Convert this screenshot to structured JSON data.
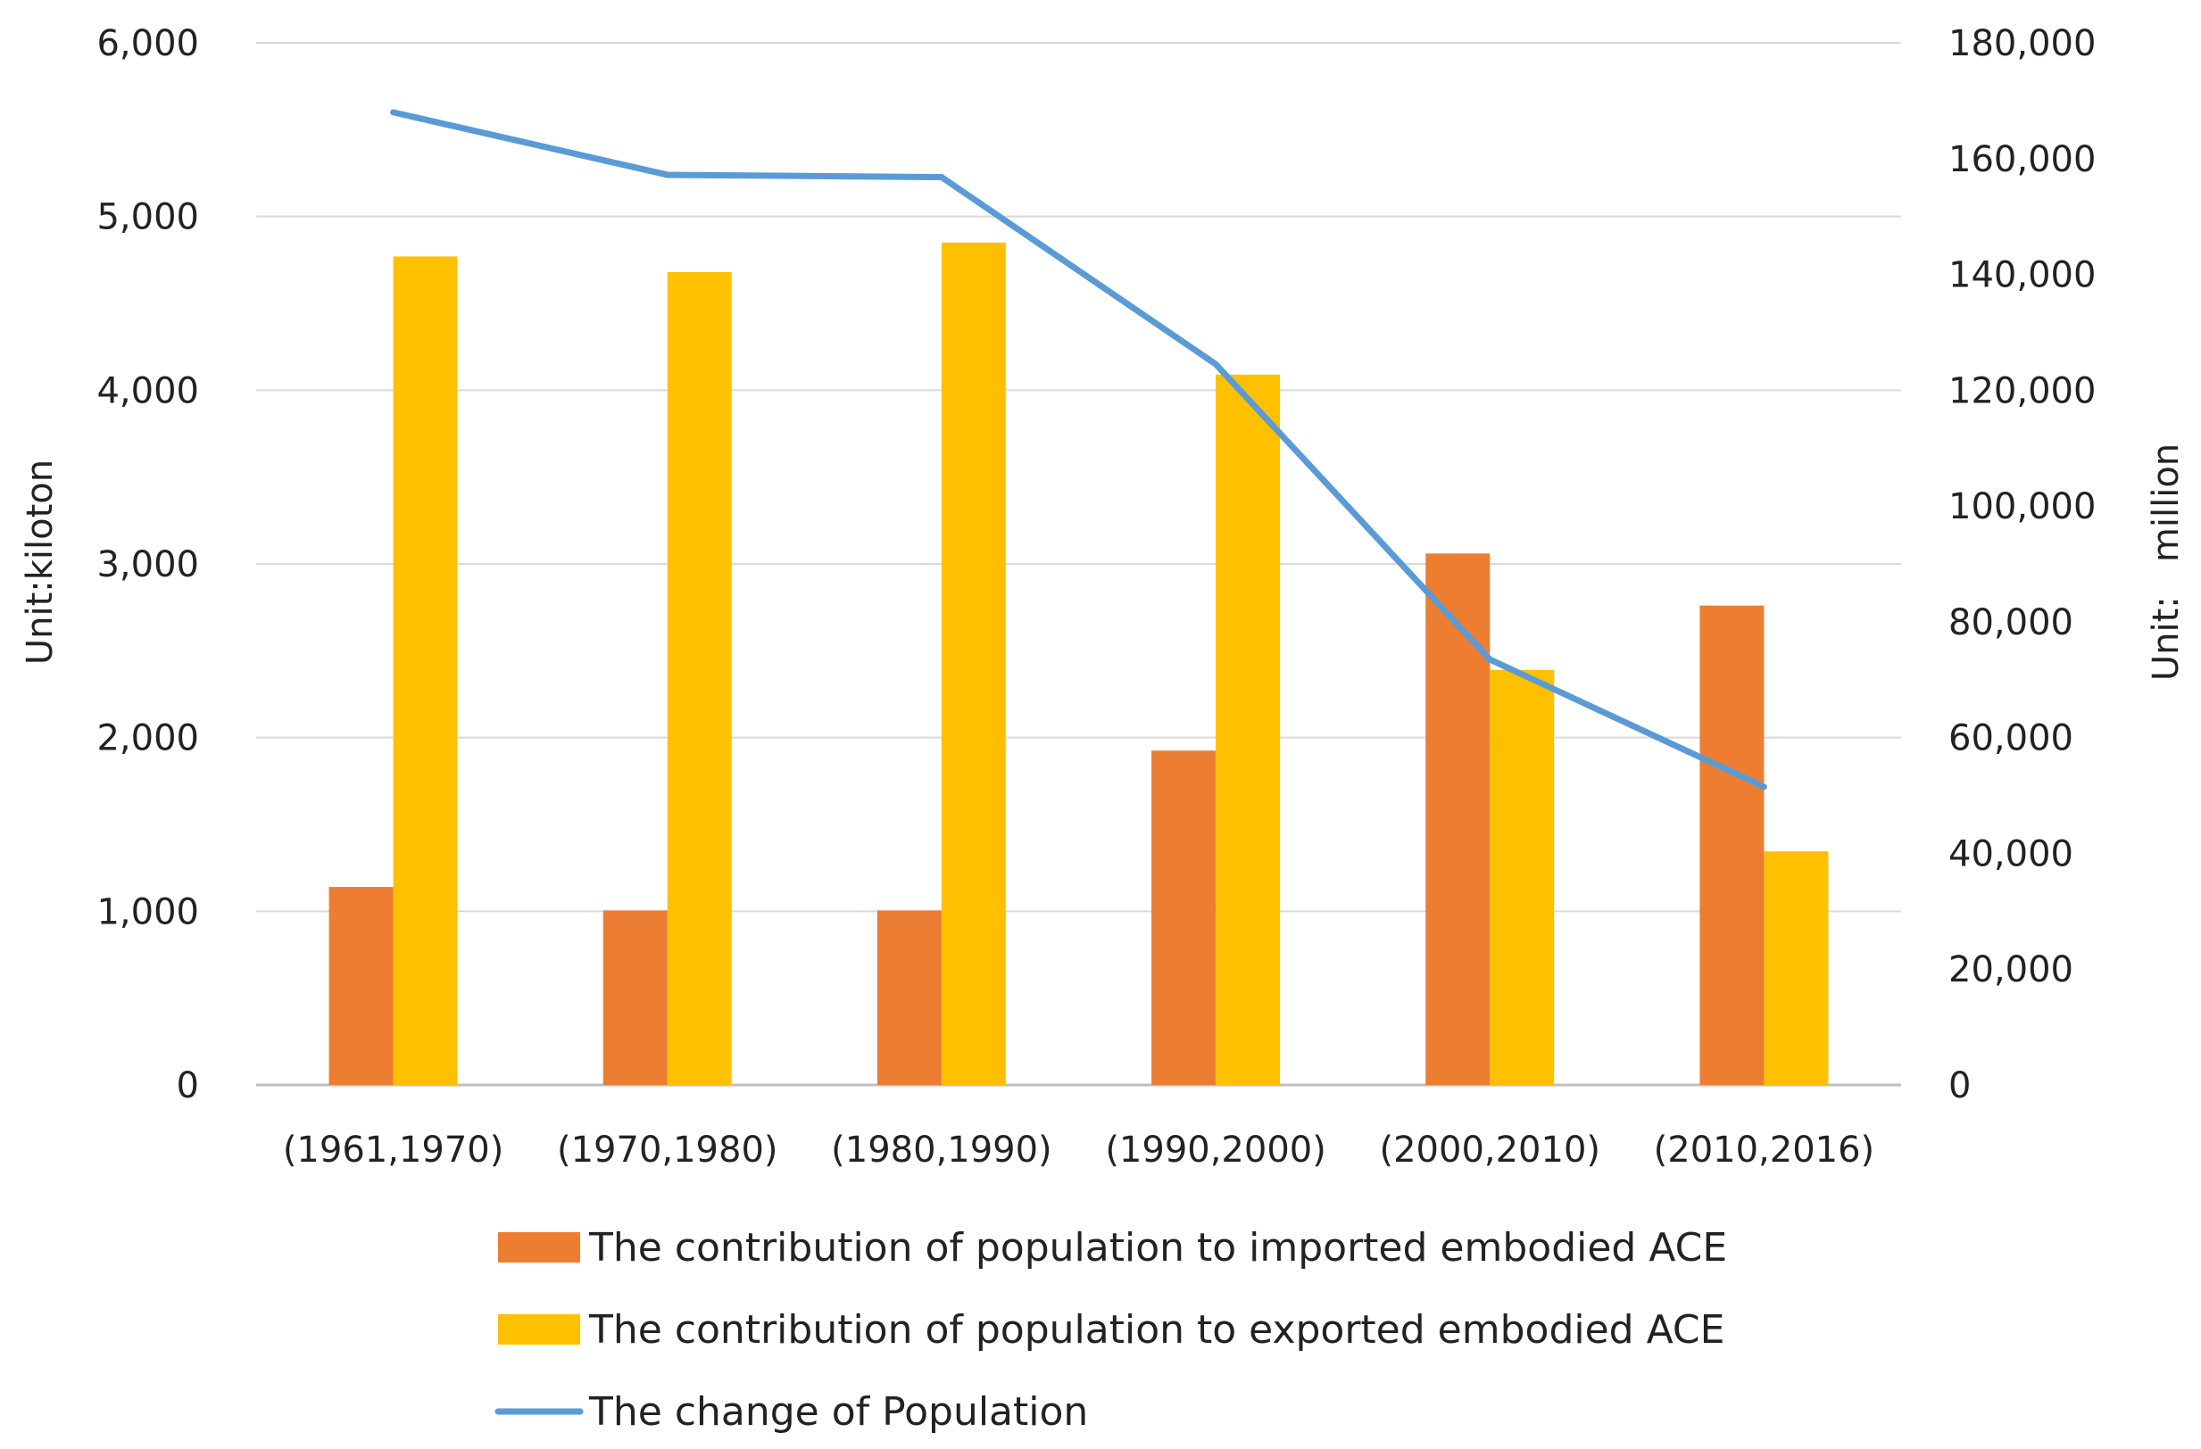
{
  "chart_data": {
    "type": "bar",
    "title": "",
    "categories": [
      "(1961,1970)",
      "(1970,1980)",
      "(1980,1990)",
      "(1990,2000)",
      "(2000,2010)",
      "(2010,2016)"
    ],
    "series": [
      {
        "name": "The contribution of population to imported embodied ACE",
        "type": "bar",
        "axis": "left",
        "color": "#ED7D31",
        "values": [
          1140,
          1005,
          1005,
          1925,
          3060,
          2760
        ]
      },
      {
        "name": "The contribution of population to exported embodied ACE",
        "type": "bar",
        "axis": "left",
        "color": "#FFC000",
        "values": [
          4770,
          4680,
          4850,
          4090,
          2390,
          1345
        ]
      },
      {
        "name": "The change of Population",
        "type": "line",
        "axis": "right",
        "color": "#5B9BD5",
        "values": [
          168000,
          157200,
          156800,
          124500,
          73500,
          51500
        ]
      }
    ],
    "ylabel": "Unit:kiloton",
    "ylim": [
      0,
      6000
    ],
    "yticks": [
      0,
      1000,
      2000,
      3000,
      4000,
      5000,
      6000
    ],
    "ytick_labels": [
      "0",
      "1,000",
      "2,000",
      "3,000",
      "4,000",
      "5,000",
      "6,000"
    ],
    "y2label": "Unit:   million",
    "y2lim": [
      0,
      180000
    ],
    "y2ticks": [
      0,
      20000,
      40000,
      60000,
      80000,
      100000,
      120000,
      140000,
      160000,
      180000
    ],
    "y2tick_labels": [
      "0",
      "20,000",
      "40,000",
      "60,000",
      "80,000",
      "100,000",
      "120,000",
      "140,000",
      "160,000",
      "180,000"
    ],
    "grid": true,
    "legend_position": "bottom"
  }
}
